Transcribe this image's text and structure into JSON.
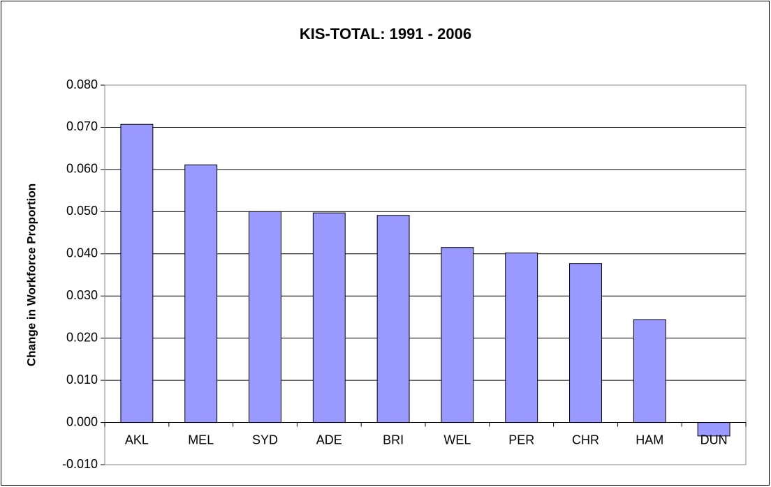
{
  "chart_data": {
    "type": "bar",
    "title": "KIS-TOTAL: 1991 - 2006",
    "y_label": "Change in Workforce Proportion",
    "categories": [
      "AKL",
      "MEL",
      "SYD",
      "ADE",
      "BRI",
      "WEL",
      "PER",
      "CHR",
      "HAM",
      "DUN"
    ],
    "values": [
      0.0707,
      0.0611,
      0.05,
      0.0497,
      0.0491,
      0.0415,
      0.0402,
      0.0377,
      0.0244,
      -0.0032
    ],
    "color": "#9999ff",
    "ylim": [
      -0.01,
      0.08
    ],
    "yticks": [
      {
        "value": -0.01,
        "label": "-0.010"
      },
      {
        "value": 0,
        "label": "0.000"
      },
      {
        "value": 0.01,
        "label": "0.010"
      },
      {
        "value": 0.02,
        "label": "0.020"
      },
      {
        "value": 0.03,
        "label": "0.030"
      },
      {
        "value": 0.04,
        "label": "0.040"
      },
      {
        "value": 0.05,
        "label": "0.050"
      },
      {
        "value": 0.06,
        "label": "0.060"
      },
      {
        "value": 0.07,
        "label": "0.070"
      },
      {
        "value": 0.08,
        "label": "0.080"
      }
    ],
    "grid": true
  }
}
